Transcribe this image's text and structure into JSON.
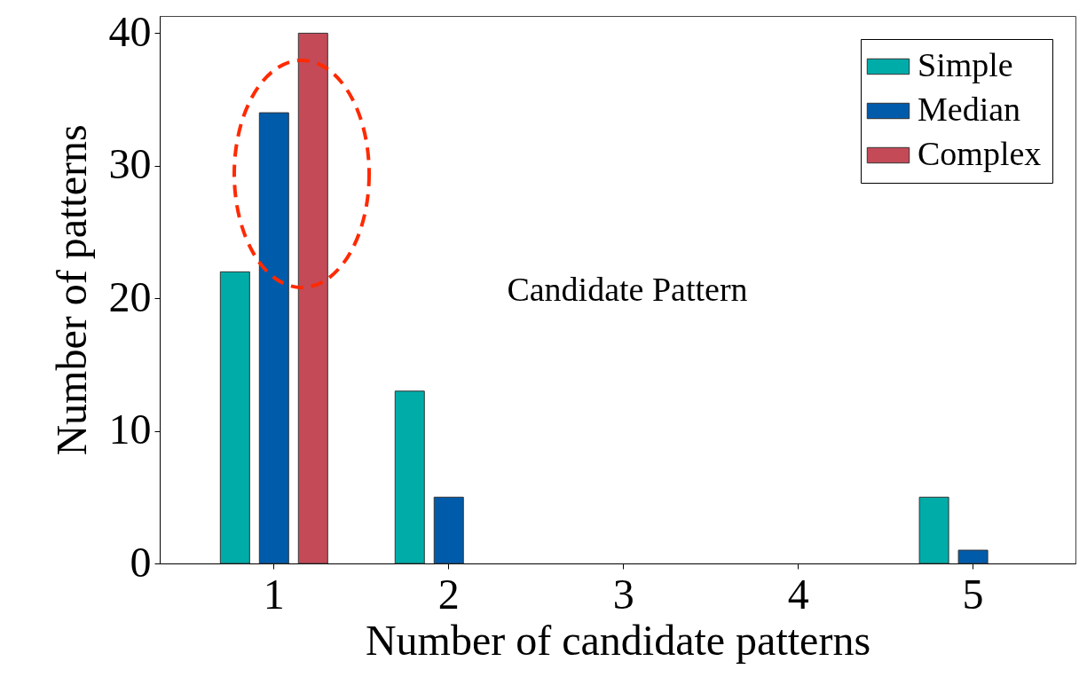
{
  "chart_data": {
    "type": "bar",
    "xlabel": "Number of candidate patterns",
    "ylabel": "Number of patterns",
    "categories": [
      "1",
      "2",
      "3",
      "4",
      "5"
    ],
    "series": [
      {
        "name": "Simple",
        "color": "#00aca8",
        "values": [
          22,
          13,
          0,
          0,
          5
        ]
      },
      {
        "name": "Median",
        "color": "#005bab",
        "values": [
          34,
          5,
          0,
          0,
          1
        ]
      },
      {
        "name": "Complex",
        "color": "#c44a58",
        "values": [
          40,
          0,
          0,
          0,
          0
        ]
      }
    ],
    "ylim": [
      0,
      41.3
    ],
    "yticks": [
      0,
      10,
      20,
      30,
      40
    ],
    "grid": false,
    "legend": "top right",
    "annotations": [
      "Candidate Pattern"
    ]
  }
}
